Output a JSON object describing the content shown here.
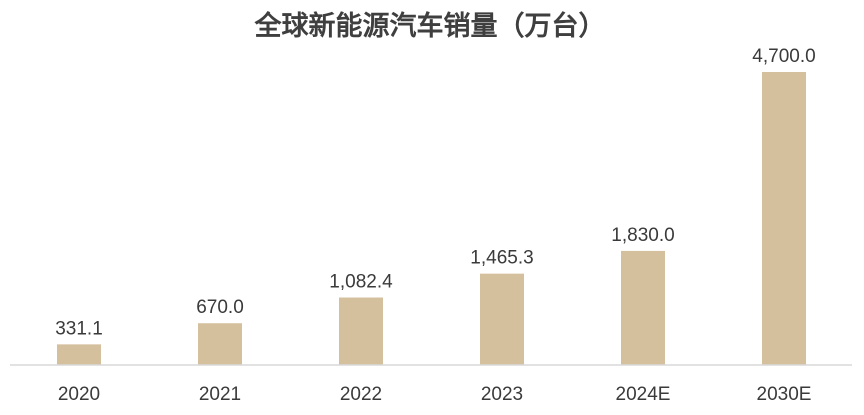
{
  "chart_data": {
    "type": "bar",
    "title": "全球新能源汽车销量（万台）",
    "categories": [
      "2020",
      "2021",
      "2022",
      "2023",
      "2024E",
      "2030E"
    ],
    "values": [
      331.1,
      670.0,
      1082.4,
      1465.3,
      1830.0,
      4700.0
    ],
    "data_labels": [
      "331.1",
      "670.0",
      "1,082.4",
      "1,465.3",
      "1,830.0",
      "4,700.0"
    ],
    "xlabel": "",
    "ylabel": "",
    "ylim": [
      0,
      4700
    ],
    "grid": false,
    "legend": "none",
    "bar_color": "#d4c09c",
    "axis_color": "#d9d9d9"
  }
}
